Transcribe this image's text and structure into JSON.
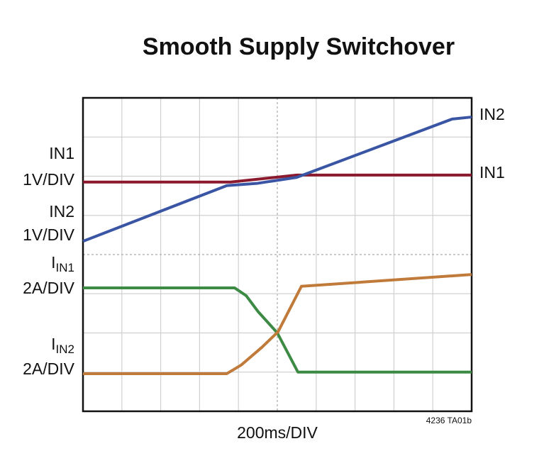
{
  "chart_data": {
    "type": "line",
    "title": "Smooth Supply Switchover",
    "x_label": "200ms/DIV",
    "note": "4236 TA01b",
    "xlim": [
      0,
      10
    ],
    "ylim": [
      0,
      8
    ],
    "xticks": [
      0,
      1,
      2,
      3,
      4,
      5,
      6,
      7,
      8,
      9,
      10
    ],
    "yticks": [
      0,
      1,
      2,
      3,
      4,
      5,
      6,
      7,
      8
    ],
    "grid": true,
    "series": [
      {
        "name": "IN1",
        "scale": "1V/DIV",
        "color": "#8b1a2e",
        "x": [
          0,
          3.8,
          5.5,
          10
        ],
        "values": [
          5.85,
          5.85,
          6.03,
          6.03
        ]
      },
      {
        "name": "IN2",
        "scale": "1V/DIV",
        "color": "#3a55a4",
        "x": [
          0,
          3.7,
          4.5,
          5.5,
          9.5,
          10
        ],
        "values": [
          4.34,
          5.76,
          5.82,
          5.97,
          7.46,
          7.51
        ]
      },
      {
        "name": "I",
        "subscript": "IN1",
        "scale": "2A/DIV",
        "color": "#3c8a44",
        "x": [
          0,
          3.9,
          4.2,
          4.5,
          5.0,
          5.53,
          10
        ],
        "values": [
          3.15,
          3.15,
          2.95,
          2.55,
          2.0,
          1.0,
          1.0
        ]
      },
      {
        "name": "I",
        "subscript": "IN2",
        "scale": "2A/DIV",
        "color": "#c07a3a",
        "x": [
          0,
          3.7,
          4.07,
          4.6,
          5.02,
          5.62,
          10
        ],
        "values": [
          0.96,
          0.96,
          1.18,
          1.63,
          2.03,
          3.19,
          3.49
        ]
      }
    ]
  }
}
